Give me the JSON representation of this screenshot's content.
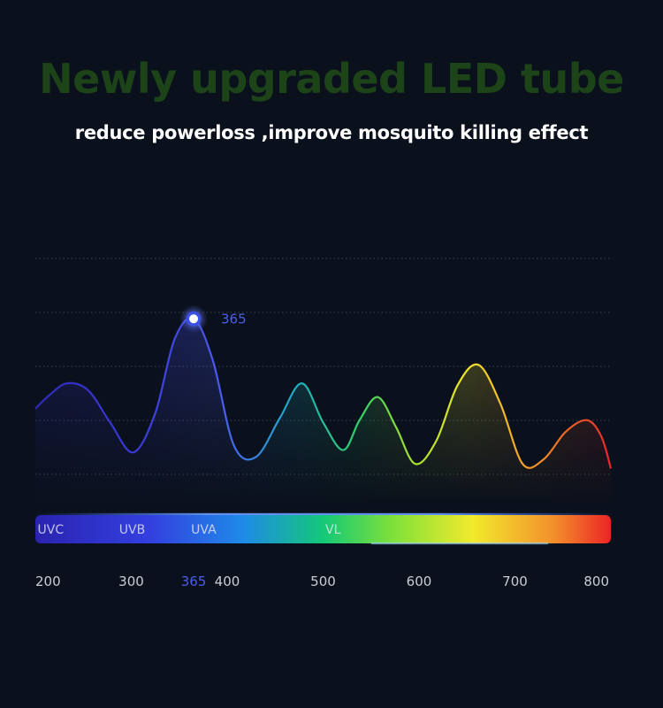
{
  "header": {
    "title": "Newly upgraded LED tube",
    "subtitle": "reduce powerloss ,improve mosquito killing effect"
  },
  "colors": {
    "title": "#1c4418",
    "highlight": "#4a5ee8",
    "tick_text": "#c8ccd6"
  },
  "chart_data": {
    "type": "line",
    "title": "",
    "xlabel": "",
    "ylabel": "",
    "xlim": [
      200,
      800
    ],
    "grid": true,
    "peak": {
      "x": 365,
      "label": "365"
    },
    "x_ticks": [
      {
        "value": 200,
        "label": "200"
      },
      {
        "value": 300,
        "label": "300"
      },
      {
        "value": 365,
        "label": "365",
        "highlight": true
      },
      {
        "value": 400,
        "label": "400"
      },
      {
        "value": 500,
        "label": "500"
      },
      {
        "value": 600,
        "label": "600"
      },
      {
        "value": 700,
        "label": "700"
      },
      {
        "value": 800,
        "label": "800"
      }
    ],
    "bands": [
      {
        "label": "UVC",
        "x": 230
      },
      {
        "label": "UVB",
        "x": 315
      },
      {
        "label": "UVA",
        "x": 390
      },
      {
        "label": "VL",
        "x": 530
      }
    ],
    "series": [
      {
        "x": [
          200,
          215,
          233,
          255,
          278,
          302,
          325,
          345,
          365,
          385,
          407,
          430,
          455,
          478,
          500,
          521,
          538,
          557,
          576,
          596,
          618,
          640,
          662,
          685,
          708,
          730,
          753,
          775,
          790,
          800
        ],
        "y": [
          0.32,
          0.38,
          0.43,
          0.4,
          0.26,
          0.13,
          0.3,
          0.62,
          0.71,
          0.53,
          0.16,
          0.11,
          0.28,
          0.43,
          0.26,
          0.14,
          0.27,
          0.37,
          0.24,
          0.08,
          0.18,
          0.42,
          0.51,
          0.34,
          0.08,
          0.1,
          0.22,
          0.27,
          0.2,
          0.06
        ]
      }
    ]
  }
}
